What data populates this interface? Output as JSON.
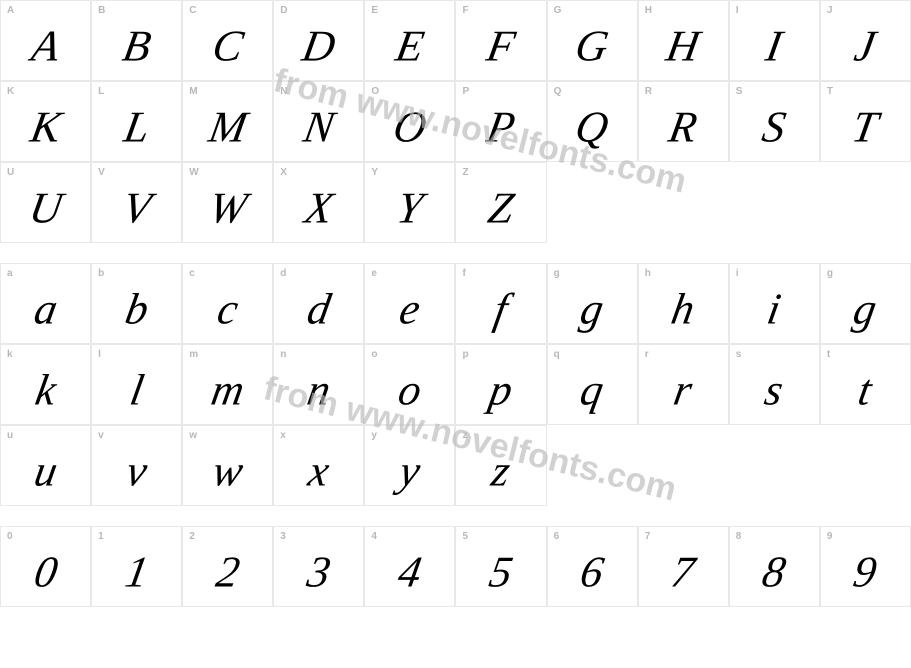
{
  "watermark_text": "from www.novelfonts.com",
  "watermark_color": "#bababa",
  "border_color": "#e8e8e8",
  "label_color": "#b8b8b8",
  "glyph_color": "#000000",
  "label_fontsize": 10,
  "glyph_fontsize": 44,
  "rows": [
    {
      "cells": [
        {
          "label": "A",
          "glyph": "A"
        },
        {
          "label": "B",
          "glyph": "B"
        },
        {
          "label": "C",
          "glyph": "C"
        },
        {
          "label": "D",
          "glyph": "D"
        },
        {
          "label": "E",
          "glyph": "E"
        },
        {
          "label": "F",
          "glyph": "F"
        },
        {
          "label": "G",
          "glyph": "G"
        },
        {
          "label": "H",
          "glyph": "H"
        },
        {
          "label": "I",
          "glyph": "I"
        },
        {
          "label": "J",
          "glyph": "J"
        }
      ]
    },
    {
      "cells": [
        {
          "label": "K",
          "glyph": "K"
        },
        {
          "label": "L",
          "glyph": "L"
        },
        {
          "label": "M",
          "glyph": "M"
        },
        {
          "label": "N",
          "glyph": "N"
        },
        {
          "label": "O",
          "glyph": "O"
        },
        {
          "label": "P",
          "glyph": "P"
        },
        {
          "label": "Q",
          "glyph": "Q"
        },
        {
          "label": "R",
          "glyph": "R"
        },
        {
          "label": "S",
          "glyph": "S"
        },
        {
          "label": "T",
          "glyph": "T"
        }
      ]
    },
    {
      "cells": [
        {
          "label": "U",
          "glyph": "U"
        },
        {
          "label": "V",
          "glyph": "V"
        },
        {
          "label": "W",
          "glyph": "W"
        },
        {
          "label": "X",
          "glyph": "X"
        },
        {
          "label": "Y",
          "glyph": "Y"
        },
        {
          "label": "Z",
          "glyph": "Z"
        },
        {
          "label": "",
          "glyph": "",
          "empty": true
        },
        {
          "label": "",
          "glyph": "",
          "empty": true
        },
        {
          "label": "",
          "glyph": "",
          "empty": true
        },
        {
          "label": "",
          "glyph": "",
          "empty": true
        }
      ]
    },
    {
      "spacer": true
    },
    {
      "cells": [
        {
          "label": "a",
          "glyph": "a"
        },
        {
          "label": "b",
          "glyph": "b"
        },
        {
          "label": "c",
          "glyph": "c"
        },
        {
          "label": "d",
          "glyph": "d"
        },
        {
          "label": "e",
          "glyph": "e"
        },
        {
          "label": "f",
          "glyph": "f"
        },
        {
          "label": "g",
          "glyph": "g"
        },
        {
          "label": "h",
          "glyph": "h"
        },
        {
          "label": "i",
          "glyph": "i"
        },
        {
          "label": "g",
          "glyph": "g"
        }
      ]
    },
    {
      "cells": [
        {
          "label": "k",
          "glyph": "k"
        },
        {
          "label": "l",
          "glyph": "l"
        },
        {
          "label": "m",
          "glyph": "m"
        },
        {
          "label": "n",
          "glyph": "n"
        },
        {
          "label": "o",
          "glyph": "o"
        },
        {
          "label": "p",
          "glyph": "p"
        },
        {
          "label": "q",
          "glyph": "q"
        },
        {
          "label": "r",
          "glyph": "r"
        },
        {
          "label": "s",
          "glyph": "s"
        },
        {
          "label": "t",
          "glyph": "t"
        }
      ]
    },
    {
      "cells": [
        {
          "label": "u",
          "glyph": "u"
        },
        {
          "label": "v",
          "glyph": "v"
        },
        {
          "label": "w",
          "glyph": "w"
        },
        {
          "label": "x",
          "glyph": "x"
        },
        {
          "label": "y",
          "glyph": "y"
        },
        {
          "label": "z",
          "glyph": "z"
        },
        {
          "label": "",
          "glyph": "",
          "empty": true
        },
        {
          "label": "",
          "glyph": "",
          "empty": true
        },
        {
          "label": "",
          "glyph": "",
          "empty": true
        },
        {
          "label": "",
          "glyph": "",
          "empty": true
        }
      ]
    },
    {
      "spacer": true
    },
    {
      "cells": [
        {
          "label": "0",
          "glyph": "0"
        },
        {
          "label": "1",
          "glyph": "1"
        },
        {
          "label": "2",
          "glyph": "2"
        },
        {
          "label": "3",
          "glyph": "3"
        },
        {
          "label": "4",
          "glyph": "4"
        },
        {
          "label": "5",
          "glyph": "5"
        },
        {
          "label": "6",
          "glyph": "6"
        },
        {
          "label": "7",
          "glyph": "7"
        },
        {
          "label": "8",
          "glyph": "8"
        },
        {
          "label": "9",
          "glyph": "9"
        }
      ]
    }
  ]
}
